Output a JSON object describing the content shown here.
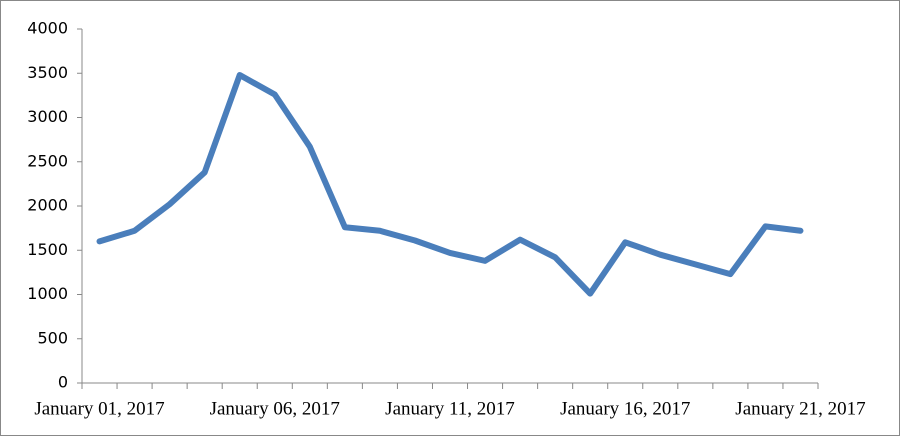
{
  "chart_data": {
    "type": "line",
    "categories": [
      "January 01, 2017",
      null,
      null,
      null,
      null,
      "January 06, 2017",
      null,
      null,
      null,
      null,
      "January 11, 2017",
      null,
      null,
      null,
      null,
      "January 16, 2017",
      null,
      null,
      null,
      null,
      "January 21, 2017"
    ],
    "series": [
      {
        "color": "#4a7ebb",
        "values": [
          1600,
          1720,
          2020,
          2380,
          3480,
          3260,
          2670,
          1760,
          1720,
          1610,
          1470,
          1380,
          1620,
          1420,
          1010,
          1590,
          1450,
          1340,
          1230,
          1770,
          1720
        ]
      }
    ],
    "ylim": [
      0,
      4000
    ],
    "yticks": [
      0,
      500,
      1000,
      1500,
      2000,
      2500,
      3000,
      3500,
      4000
    ],
    "grid": false
  }
}
